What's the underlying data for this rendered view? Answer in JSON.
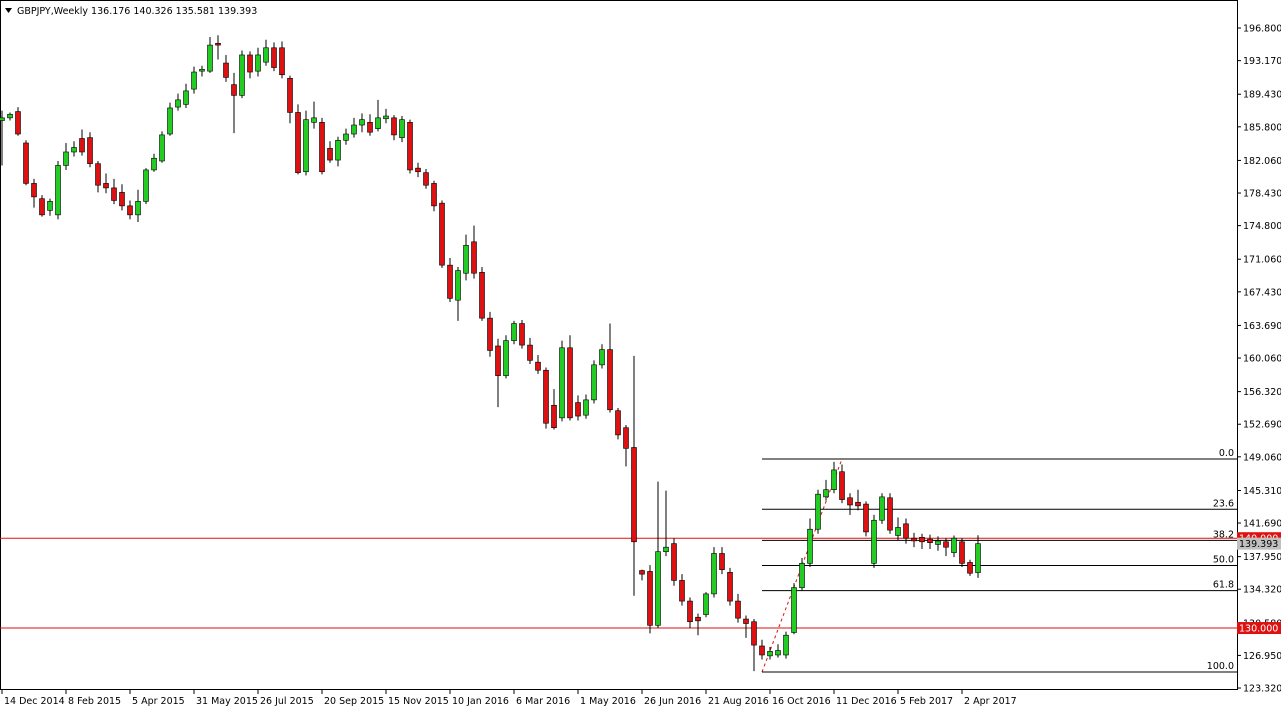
{
  "chart_data": {
    "type": "candlestick",
    "title": "GBPJPY,Weekly  136.176 140.326 135.581 139.393",
    "up_color": "#22cc22",
    "down_color": "#dd1111",
    "categories": [
      "14 Dec 2014",
      null,
      null,
      null,
      null,
      null,
      null,
      null,
      "8 Feb 2015",
      null,
      null,
      null,
      null,
      null,
      null,
      null,
      "5 Apr 2015",
      null,
      null,
      null,
      null,
      null,
      null,
      null,
      "31 May 2015",
      null,
      null,
      null,
      null,
      null,
      null,
      null,
      "26 Jul 2015",
      null,
      null,
      null,
      null,
      null,
      null,
      null,
      "20 Sep 2015",
      null,
      null,
      null,
      null,
      null,
      null,
      null,
      "15 Nov 2015",
      null,
      null,
      null,
      null,
      null,
      null,
      null,
      "10 Jan 2016",
      null,
      null,
      null,
      null,
      null,
      null,
      null,
      "6 Mar 2016",
      null,
      null,
      null,
      null,
      null,
      null,
      null,
      "1 May 2016",
      null,
      null,
      null,
      null,
      null,
      null,
      null,
      "26 Jun 2016",
      null,
      null,
      null,
      null,
      null,
      null,
      null,
      "21 Aug 2016",
      null,
      null,
      null,
      null,
      null,
      null,
      null,
      "16 Oct 2016",
      null,
      null,
      null,
      null,
      null,
      null,
      null,
      "11 Dec 2016",
      null,
      null,
      null,
      null,
      null,
      null,
      null,
      "5 Feb 2017",
      null,
      null,
      null,
      null,
      null,
      null,
      null,
      "2 Apr 2017",
      null,
      null
    ],
    "open": [
      186.5,
      186.8,
      187.5,
      184,
      179.5,
      177.8,
      176.5,
      176,
      181.5,
      183,
      184.5,
      184.6,
      181.7,
      179.5,
      179,
      178.5,
      177,
      176,
      177.5,
      181,
      182,
      185,
      188,
      188.3,
      190,
      192,
      192,
      195.1,
      192.9,
      190.5,
      189.3,
      193.8,
      192,
      193,
      194.6,
      194.6,
      191.2,
      187.4,
      180.8,
      186.3,
      186.3,
      183.4,
      182.1,
      184.3,
      185,
      186,
      186.3,
      185.6,
      186.7,
      186.8,
      184.6,
      186.3,
      181.2,
      180.7,
      179.5,
      177.3,
      170.4,
      166.5,
      169.5,
      173,
      169.6,
      164.5,
      161.4,
      158.1,
      162,
      163.9,
      161.5,
      159.6,
      158.7,
      154.8,
      153.4,
      161.2,
      155.1,
      153.7,
      155.4,
      159.3,
      161,
      154.2,
      152.3,
      150.1,
      136.4,
      136.3,
      130.3,
      138.5,
      139.4,
      135.3,
      133,
      131.2,
      131.5,
      133.8,
      138.3,
      136.2,
      133,
      131,
      130.7,
      128,
      126.9,
      127,
      127,
      129.5,
      134.5,
      137.2,
      141,
      144.6,
      145.4,
      147.4,
      144.5,
      144,
      143.8,
      137.2,
      142,
      144.5,
      140.3,
      141.6,
      140,
      140.1,
      139.9,
      139.3,
      139.6,
      138.4,
      139.6,
      137.3,
      136.176
    ],
    "high": [
      187.6,
      187.4,
      188,
      184.3,
      180,
      178.2,
      177.8,
      182,
      184,
      184.2,
      185.5,
      185.2,
      182,
      180.6,
      180,
      179.4,
      177.6,
      178.8,
      181.2,
      182.8,
      185.3,
      188.5,
      189.5,
      190.6,
      192.5,
      192.6,
      195.8,
      196,
      193.8,
      191.8,
      194.3,
      194.2,
      194.6,
      195.5,
      195.2,
      195.3,
      191.5,
      188.3,
      187.6,
      188.6,
      186.8,
      184.2,
      184.7,
      185.6,
      186.8,
      187.3,
      187.2,
      188.8,
      187.8,
      187.1,
      187,
      186.6,
      181.8,
      181.1,
      179.8,
      177.6,
      171.2,
      170.2,
      173.8,
      174.8,
      170.2,
      165.2,
      162.2,
      162.6,
      164.2,
      164.3,
      162.3,
      160.4,
      159,
      156.6,
      162,
      162.6,
      155.9,
      156,
      159.8,
      161.6,
      163.9,
      154.5,
      152.6,
      160.3,
      136.5,
      137,
      146.3,
      145.3,
      140,
      136,
      133.4,
      131.6,
      134,
      139,
      139,
      136.7,
      133.8,
      131.4,
      131,
      128.7,
      127.9,
      128.2,
      129.6,
      135,
      137.8,
      142.2,
      145.4,
      146.5,
      148.5,
      148.2,
      145,
      145.4,
      144.1,
      142.6,
      145,
      145,
      142.3,
      142.2,
      140.6,
      140.5,
      140.4,
      140.2,
      140,
      140.3,
      140,
      137.6,
      140.326
    ],
    "low": [
      181.5,
      186.5,
      184.8,
      179.3,
      176.8,
      175.8,
      175.9,
      175.5,
      181,
      182.5,
      182.6,
      181.3,
      178.5,
      178.4,
      177.2,
      176.5,
      175.5,
      175.2,
      177.2,
      180.8,
      181.8,
      184.8,
      187.6,
      187.9,
      189.5,
      191.4,
      191.8,
      193.3,
      190.8,
      185.1,
      189,
      191.2,
      191.4,
      192.6,
      192,
      191.2,
      186.2,
      180.5,
      180.4,
      185.6,
      180.5,
      181.8,
      181.4,
      183.8,
      184.6,
      185.2,
      184.8,
      185.3,
      186.2,
      184.3,
      184.1,
      180.6,
      180.2,
      178.9,
      176.4,
      170.1,
      166.3,
      164.2,
      168.7,
      168.9,
      164.2,
      160.2,
      154.6,
      157.8,
      161.6,
      161.1,
      159.4,
      158.3,
      152.2,
      152.1,
      153,
      153.1,
      153.1,
      153.3,
      155,
      158.9,
      154,
      151,
      148,
      133.6,
      135.3,
      129.4,
      130,
      138,
      134.7,
      132.5,
      130,
      129.2,
      131.2,
      133.4,
      136,
      132.5,
      130.6,
      128.9,
      125.2,
      126.5,
      126.5,
      126.7,
      126.6,
      129.3,
      134.2,
      136.8,
      140.5,
      144.2,
      145,
      143.9,
      142.6,
      143.1,
      140.2,
      136.7,
      141.6,
      140.5,
      139.8,
      139.4,
      139,
      138.8,
      138.8,
      138.6,
      138,
      137.9,
      136.8,
      135.8,
      135.581
    ],
    "close": [
      186.8,
      187.2,
      185,
      179.5,
      178,
      176,
      177.5,
      181.5,
      183,
      183.5,
      183,
      181.7,
      179.3,
      179,
      177.6,
      177,
      176,
      177.5,
      181,
      182.3,
      184.9,
      187.9,
      188.8,
      189.8,
      191.9,
      192.2,
      194.9,
      194.9,
      191.3,
      189.3,
      193.8,
      191.9,
      193.8,
      194.6,
      192.4,
      191.6,
      187.4,
      180.7,
      186.6,
      186.8,
      180.8,
      182.1,
      184.3,
      185,
      186,
      186.6,
      185.2,
      186.8,
      187,
      184.9,
      186.6,
      181,
      180.8,
      179.3,
      177,
      170.4,
      166.7,
      169.8,
      172.6,
      169.5,
      164.5,
      160.9,
      158.1,
      162,
      163.9,
      161.5,
      159.8,
      158.7,
      152.8,
      152.3,
      161.2,
      153.4,
      153.6,
      155.4,
      159.3,
      161,
      154.3,
      151.5,
      150,
      139.6,
      136,
      130.3,
      138.5,
      139,
      135.3,
      133,
      130.7,
      130.8,
      133.8,
      138.3,
      136.5,
      133,
      131.1,
      130.5,
      128.1,
      127,
      127.4,
      127.5,
      129.2,
      134.5,
      137.2,
      141,
      144.9,
      145.4,
      147.6,
      144.3,
      143.7,
      143.6,
      140.7,
      142,
      144.6,
      140.9,
      141.2,
      140,
      139.7,
      139.6,
      139.5,
      139.7,
      139,
      140,
      137.2,
      136.1,
      139.393
    ],
    "ylim": [
      123.1,
      199.92
    ],
    "yticks": [
      {
        "value": 196.8,
        "label": "196.800"
      },
      {
        "value": 193.17,
        "label": "193.170"
      },
      {
        "value": 189.43,
        "label": "189.430"
      },
      {
        "value": 185.8,
        "label": "185.800"
      },
      {
        "value": 182.06,
        "label": "182.060"
      },
      {
        "value": 178.43,
        "label": "178.430"
      },
      {
        "value": 174.8,
        "label": "174.800"
      },
      {
        "value": 171.06,
        "label": "171.060"
      },
      {
        "value": 167.43,
        "label": "167.430"
      },
      {
        "value": 163.69,
        "label": "163.690"
      },
      {
        "value": 160.06,
        "label": "160.060"
      },
      {
        "value": 156.32,
        "label": "156.320"
      },
      {
        "value": 152.69,
        "label": "152.690"
      },
      {
        "value": 149.06,
        "label": "149.060"
      },
      {
        "value": 145.31,
        "label": "145.310"
      },
      {
        "value": 141.69,
        "label": "141.690"
      },
      {
        "value": 137.95,
        "label": "137.950"
      },
      {
        "value": 134.32,
        "label": "134.320"
      },
      {
        "value": 130.58,
        "label": "130.580"
      },
      {
        "value": 126.95,
        "label": "126.950"
      },
      {
        "value": 123.32,
        "label": "123.320"
      }
    ],
    "hlines": [
      {
        "value": 140,
        "label": "140.000",
        "color": "#dd1111"
      },
      {
        "value": 130,
        "label": "130.000",
        "color": "#dd1111"
      }
    ],
    "price_label": 139.393,
    "fibonacci": {
      "high": 148.82,
      "low": 125.1,
      "start_index": 95,
      "levels": [
        {
          "value": 0,
          "label": "0.0"
        },
        {
          "value": 23.6,
          "label": "23.6"
        },
        {
          "value": 38.2,
          "label": "38.2"
        },
        {
          "value": 50,
          "label": "50.0"
        },
        {
          "value": 61.8,
          "label": "61.8"
        },
        {
          "value": 100,
          "label": "100.0"
        }
      ]
    }
  }
}
